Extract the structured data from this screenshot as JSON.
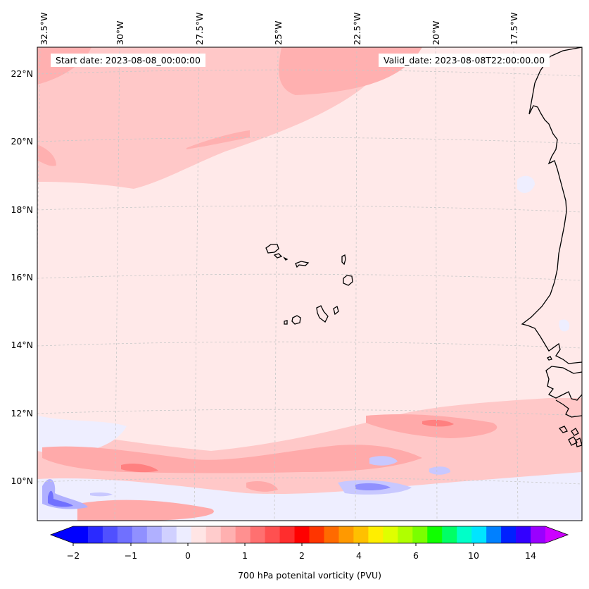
{
  "map": {
    "region": "Cape Verde / West African coast",
    "lon_labels": [
      "32.5°W",
      "30°W",
      "27.5°W",
      "25°W",
      "22.5°W",
      "20°W",
      "17.5°W"
    ],
    "lat_labels": [
      "22°N",
      "20°N",
      "18°N",
      "16°N",
      "14°N",
      "12°N",
      "10°N"
    ]
  },
  "info": {
    "start_date": "Start date: 2023-08-08_00:00:00",
    "valid_date": "Valid_date: 2023-08-08T22:00:00.00"
  },
  "colorbar": {
    "label": "700 hPa potenital vorticity (PVU)",
    "ticks": [
      "−2",
      "−1",
      "0",
      "1",
      "2",
      "4",
      "6",
      "10",
      "14"
    ],
    "colors": [
      "#0000ff",
      "#2a2aff",
      "#5050ff",
      "#7070ff",
      "#9090ff",
      "#b0b0ff",
      "#d0d0ff",
      "#ededff",
      "#ffe5e5",
      "#ffcccc",
      "#ffb0b0",
      "#ff9090",
      "#ff7070",
      "#ff5050",
      "#ff2d2d",
      "#ff0000",
      "#ff3500",
      "#ff6a00",
      "#ff9900",
      "#ffc000",
      "#ffee00",
      "#dfff00",
      "#b0ff00",
      "#7aff00",
      "#10ff00",
      "#00ff66",
      "#00ffc8",
      "#00e5ff",
      "#0080ff",
      "#0020ff",
      "#3300ff",
      "#9900ff"
    ],
    "under_color": "#0000ff",
    "over_color": "#cc00ff"
  },
  "palette": {
    "background_field": "#ffe9e9",
    "light_positive": "#ffc8c8",
    "medium_positive": "#ffaaaa",
    "strong_positive": "#ff8080",
    "light_negative": "#eeeeff",
    "medium_negative": "#c8c8ff",
    "strong_negative": "#8888ff",
    "coastline": "#000000",
    "gridline": "#c8c8c8"
  }
}
